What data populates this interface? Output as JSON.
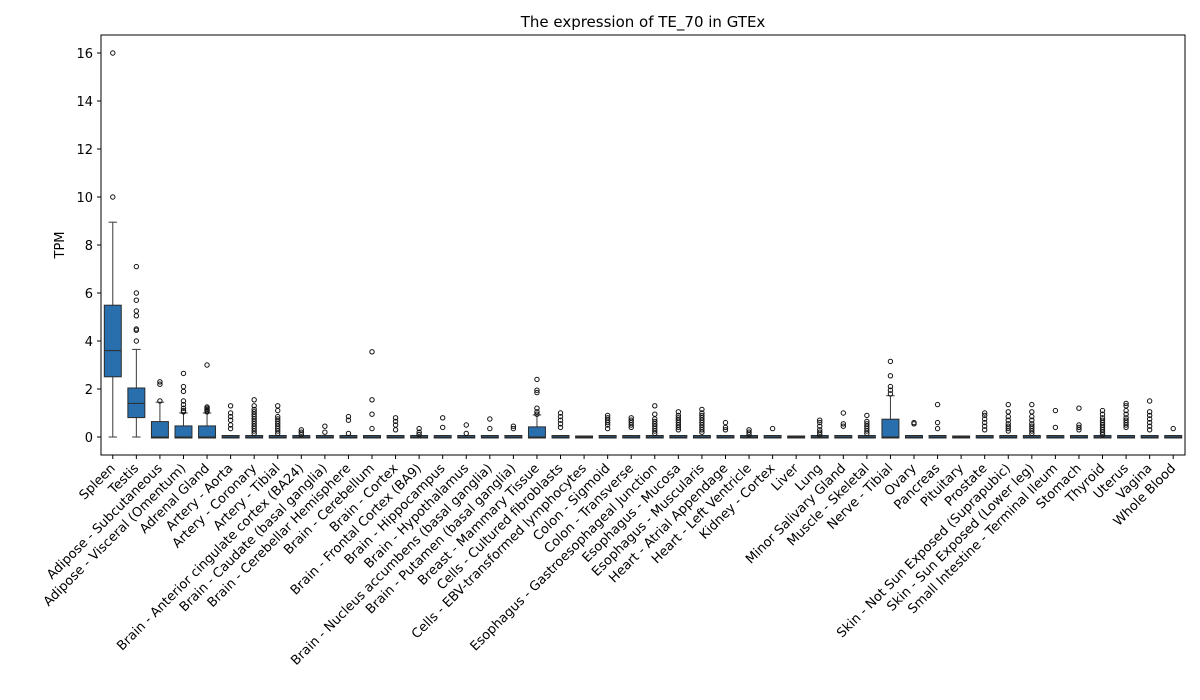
{
  "chart_data": {
    "type": "box",
    "title": "The expression of TE_70 in GTEx",
    "xlabel": "",
    "ylabel": "TPM",
    "ylim": [
      -0.75,
      16.75
    ],
    "yticks": [
      0,
      2,
      4,
      6,
      8,
      10,
      12,
      14,
      16
    ],
    "box_color": "#2a6fad",
    "grid": false,
    "categories": [
      "Spleen",
      "Testis",
      "Adipose - Subcutaneous",
      "Adipose - Visceral (Omentum)",
      "Adrenal Gland",
      "Artery - Aorta",
      "Artery - Coronary",
      "Artery - Tibial",
      "Brain - Anterior cingulate cortex (BA24)",
      "Brain - Caudate (basal ganglia)",
      "Brain - Cerebellar Hemisphere",
      "Brain - Cerebellum",
      "Brain - Cortex",
      "Brain - Frontal Cortex (BA9)",
      "Brain - Hippocampus",
      "Brain - Hypothalamus",
      "Brain - Nucleus accumbens (basal ganglia)",
      "Brain - Putamen (basal ganglia)",
      "Breast - Mammary Tissue",
      "Cells - Cultured fibroblasts",
      "Cells - EBV-transformed lymphocytes",
      "Colon - Sigmoid",
      "Colon - Transverse",
      "Esophagus - Gastroesophageal Junction",
      "Esophagus - Mucosa",
      "Esophagus - Muscularis",
      "Heart - Atrial Appendage",
      "Heart - Left Ventricle",
      "Kidney - Cortex",
      "Liver",
      "Lung",
      "Minor Salivary Gland",
      "Muscle - Skeletal",
      "Nerve - Tibial",
      "Ovary",
      "Pancreas",
      "Pituitary",
      "Prostate",
      "Skin - Not Sun Exposed (Suprapubic)",
      "Skin - Sun Exposed (Lower leg)",
      "Small Intestine - Terminal Ileum",
      "Stomach",
      "Thyroid",
      "Uterus",
      "Vagina",
      "Whole Blood"
    ],
    "boxes": [
      {
        "q1": 2.55,
        "med": 3.6,
        "q3": 5.45,
        "lo": 0.0,
        "hi": 8.95,
        "fliers": [
          10.0,
          16.0
        ]
      },
      {
        "q1": 0.85,
        "med": 1.4,
        "q3": 2.0,
        "lo": 0.0,
        "hi": 3.65,
        "fliers": [
          4.0,
          4.45,
          4.5,
          5.05,
          5.25,
          5.7,
          6.0,
          7.1
        ]
      },
      {
        "q1": 0.0,
        "med": 0.0,
        "q3": 0.6,
        "lo": 0.0,
        "hi": 1.45,
        "fliers": [
          1.5,
          2.2,
          2.3
        ]
      },
      {
        "q1": 0.0,
        "med": 0.0,
        "q3": 0.42,
        "lo": 0.0,
        "hi": 1.0,
        "fliers": [
          1.05,
          1.1,
          1.2,
          1.35,
          1.5,
          1.9,
          2.1,
          2.65
        ]
      },
      {
        "q1": 0.0,
        "med": 0.0,
        "q3": 0.42,
        "lo": 0.0,
        "hi": 1.0,
        "fliers": [
          1.05,
          1.1,
          1.15,
          1.2,
          1.25,
          3.0
        ]
      },
      {
        "q1": 0.0,
        "med": 0.0,
        "q3": 0.02,
        "lo": 0.0,
        "hi": 0.05,
        "fliers": [
          0.35,
          0.5,
          0.7,
          0.85,
          1.0,
          1.3
        ]
      },
      {
        "q1": 0.0,
        "med": 0.0,
        "q3": 0.02,
        "lo": 0.0,
        "hi": 0.05,
        "fliers": [
          0.15,
          0.25,
          0.35,
          0.45,
          0.55,
          0.65,
          0.75,
          0.85,
          0.95,
          1.05,
          1.15,
          1.3,
          1.55
        ]
      },
      {
        "q1": 0.0,
        "med": 0.0,
        "q3": 0.02,
        "lo": 0.0,
        "hi": 0.05,
        "fliers": [
          0.15,
          0.25,
          0.35,
          0.45,
          0.55,
          0.65,
          0.75,
          0.85,
          1.1,
          1.3
        ]
      },
      {
        "q1": 0.0,
        "med": 0.0,
        "q3": 0.02,
        "lo": 0.0,
        "hi": 0.05,
        "fliers": [
          0.1,
          0.2,
          0.3
        ]
      },
      {
        "q1": 0.0,
        "med": 0.0,
        "q3": 0.02,
        "lo": 0.0,
        "hi": 0.05,
        "fliers": [
          0.2,
          0.45
        ]
      },
      {
        "q1": 0.0,
        "med": 0.0,
        "q3": 0.02,
        "lo": 0.0,
        "hi": 0.05,
        "fliers": [
          0.15,
          0.7,
          0.85
        ]
      },
      {
        "q1": 0.0,
        "med": 0.0,
        "q3": 0.02,
        "lo": 0.0,
        "hi": 0.05,
        "fliers": [
          0.35,
          0.95,
          1.55,
          3.55
        ]
      },
      {
        "q1": 0.0,
        "med": 0.0,
        "q3": 0.02,
        "lo": 0.0,
        "hi": 0.05,
        "fliers": [
          0.3,
          0.5,
          0.65,
          0.8
        ]
      },
      {
        "q1": 0.0,
        "med": 0.0,
        "q3": 0.02,
        "lo": 0.0,
        "hi": 0.05,
        "fliers": [
          0.1,
          0.2,
          0.35
        ]
      },
      {
        "q1": 0.0,
        "med": 0.0,
        "q3": 0.02,
        "lo": 0.0,
        "hi": 0.05,
        "fliers": [
          0.4,
          0.8
        ]
      },
      {
        "q1": 0.0,
        "med": 0.0,
        "q3": 0.02,
        "lo": 0.0,
        "hi": 0.05,
        "fliers": [
          0.15,
          0.5
        ]
      },
      {
        "q1": 0.0,
        "med": 0.0,
        "q3": 0.02,
        "lo": 0.0,
        "hi": 0.05,
        "fliers": [
          0.35,
          0.75
        ]
      },
      {
        "q1": 0.0,
        "med": 0.0,
        "q3": 0.02,
        "lo": 0.0,
        "hi": 0.05,
        "fliers": [
          0.35,
          0.45
        ]
      },
      {
        "q1": 0.0,
        "med": 0.0,
        "q3": 0.38,
        "lo": 0.0,
        "hi": 0.92,
        "fliers": [
          0.95,
          1.05,
          1.2,
          1.85,
          1.95,
          2.4
        ]
      },
      {
        "q1": 0.0,
        "med": 0.0,
        "q3": 0.02,
        "lo": 0.0,
        "hi": 0.05,
        "fliers": [
          0.4,
          0.55,
          0.7,
          0.85,
          1.0
        ]
      },
      {
        "q1": 0.0,
        "med": 0.0,
        "q3": 0.0,
        "lo": 0.0,
        "hi": 0.0,
        "fliers": []
      },
      {
        "q1": 0.0,
        "med": 0.0,
        "q3": 0.02,
        "lo": 0.0,
        "hi": 0.05,
        "fliers": [
          0.35,
          0.5,
          0.6,
          0.7,
          0.8,
          0.9
        ]
      },
      {
        "q1": 0.0,
        "med": 0.0,
        "q3": 0.02,
        "lo": 0.0,
        "hi": 0.05,
        "fliers": [
          0.4,
          0.5,
          0.6,
          0.7,
          0.8
        ]
      },
      {
        "q1": 0.0,
        "med": 0.0,
        "q3": 0.02,
        "lo": 0.0,
        "hi": 0.05,
        "fliers": [
          0.15,
          0.25,
          0.35,
          0.45,
          0.55,
          0.65,
          0.75,
          0.95,
          1.3
        ]
      },
      {
        "q1": 0.0,
        "med": 0.0,
        "q3": 0.02,
        "lo": 0.0,
        "hi": 0.05,
        "fliers": [
          0.3,
          0.4,
          0.5,
          0.6,
          0.7,
          0.8,
          0.9,
          1.05
        ]
      },
      {
        "q1": 0.0,
        "med": 0.0,
        "q3": 0.02,
        "lo": 0.0,
        "hi": 0.05,
        "fliers": [
          0.2,
          0.3,
          0.4,
          0.5,
          0.6,
          0.7,
          0.8,
          0.9,
          1.0,
          1.15
        ]
      },
      {
        "q1": 0.0,
        "med": 0.0,
        "q3": 0.02,
        "lo": 0.0,
        "hi": 0.05,
        "fliers": [
          0.3,
          0.4,
          0.6
        ]
      },
      {
        "q1": 0.0,
        "med": 0.0,
        "q3": 0.02,
        "lo": 0.0,
        "hi": 0.05,
        "fliers": [
          0.1,
          0.2,
          0.3
        ]
      },
      {
        "q1": 0.0,
        "med": 0.0,
        "q3": 0.02,
        "lo": 0.0,
        "hi": 0.05,
        "fliers": [
          0.35
        ]
      },
      {
        "q1": 0.0,
        "med": 0.0,
        "q3": 0.0,
        "lo": 0.0,
        "hi": 0.0,
        "fliers": []
      },
      {
        "q1": 0.0,
        "med": 0.0,
        "q3": 0.02,
        "lo": 0.0,
        "hi": 0.05,
        "fliers": [
          0.1,
          0.2,
          0.3,
          0.45,
          0.6,
          0.7
        ]
      },
      {
        "q1": 0.0,
        "med": 0.0,
        "q3": 0.02,
        "lo": 0.0,
        "hi": 0.05,
        "fliers": [
          0.45,
          0.55,
          1.0
        ]
      },
      {
        "q1": 0.0,
        "med": 0.0,
        "q3": 0.02,
        "lo": 0.0,
        "hi": 0.05,
        "fliers": [
          0.15,
          0.25,
          0.35,
          0.45,
          0.55,
          0.65,
          0.9
        ]
      },
      {
        "q1": 0.0,
        "med": 0.0,
        "q3": 0.7,
        "lo": 0.0,
        "hi": 1.72,
        "fliers": [
          1.8,
          1.95,
          2.1,
          2.55,
          3.15
        ]
      },
      {
        "q1": 0.0,
        "med": 0.0,
        "q3": 0.02,
        "lo": 0.0,
        "hi": 0.05,
        "fliers": [
          0.55,
          0.6
        ]
      },
      {
        "q1": 0.0,
        "med": 0.0,
        "q3": 0.02,
        "lo": 0.0,
        "hi": 0.05,
        "fliers": [
          0.35,
          0.6,
          1.35
        ]
      },
      {
        "q1": 0.0,
        "med": 0.0,
        "q3": 0.0,
        "lo": 0.0,
        "hi": 0.0,
        "fliers": []
      },
      {
        "q1": 0.0,
        "med": 0.0,
        "q3": 0.02,
        "lo": 0.0,
        "hi": 0.05,
        "fliers": [
          0.3,
          0.45,
          0.6,
          0.75,
          0.9,
          1.0
        ]
      },
      {
        "q1": 0.0,
        "med": 0.0,
        "q3": 0.02,
        "lo": 0.0,
        "hi": 0.05,
        "fliers": [
          0.25,
          0.35,
          0.45,
          0.55,
          0.7,
          0.85,
          1.05,
          1.35
        ]
      },
      {
        "q1": 0.0,
        "med": 0.0,
        "q3": 0.02,
        "lo": 0.0,
        "hi": 0.05,
        "fliers": [
          0.15,
          0.25,
          0.35,
          0.45,
          0.55,
          0.7,
          0.85,
          1.05,
          1.35
        ]
      },
      {
        "q1": 0.0,
        "med": 0.0,
        "q3": 0.02,
        "lo": 0.0,
        "hi": 0.05,
        "fliers": [
          0.4,
          1.1
        ]
      },
      {
        "q1": 0.0,
        "med": 0.0,
        "q3": 0.02,
        "lo": 0.0,
        "hi": 0.05,
        "fliers": [
          0.3,
          0.4,
          0.5,
          1.2
        ]
      },
      {
        "q1": 0.0,
        "med": 0.0,
        "q3": 0.02,
        "lo": 0.0,
        "hi": 0.05,
        "fliers": [
          0.1,
          0.2,
          0.3,
          0.4,
          0.5,
          0.6,
          0.7,
          0.8,
          0.95,
          1.1
        ]
      },
      {
        "q1": 0.0,
        "med": 0.0,
        "q3": 0.02,
        "lo": 0.0,
        "hi": 0.05,
        "fliers": [
          0.4,
          0.5,
          0.6,
          0.7,
          0.8,
          0.95,
          1.1,
          1.3,
          1.4
        ]
      },
      {
        "q1": 0.0,
        "med": 0.0,
        "q3": 0.02,
        "lo": 0.0,
        "hi": 0.05,
        "fliers": [
          0.3,
          0.45,
          0.6,
          0.75,
          0.9,
          1.05,
          1.5
        ]
      },
      {
        "q1": 0.0,
        "med": 0.0,
        "q3": 0.02,
        "lo": 0.0,
        "hi": 0.05,
        "fliers": [
          0.35
        ]
      }
    ]
  }
}
